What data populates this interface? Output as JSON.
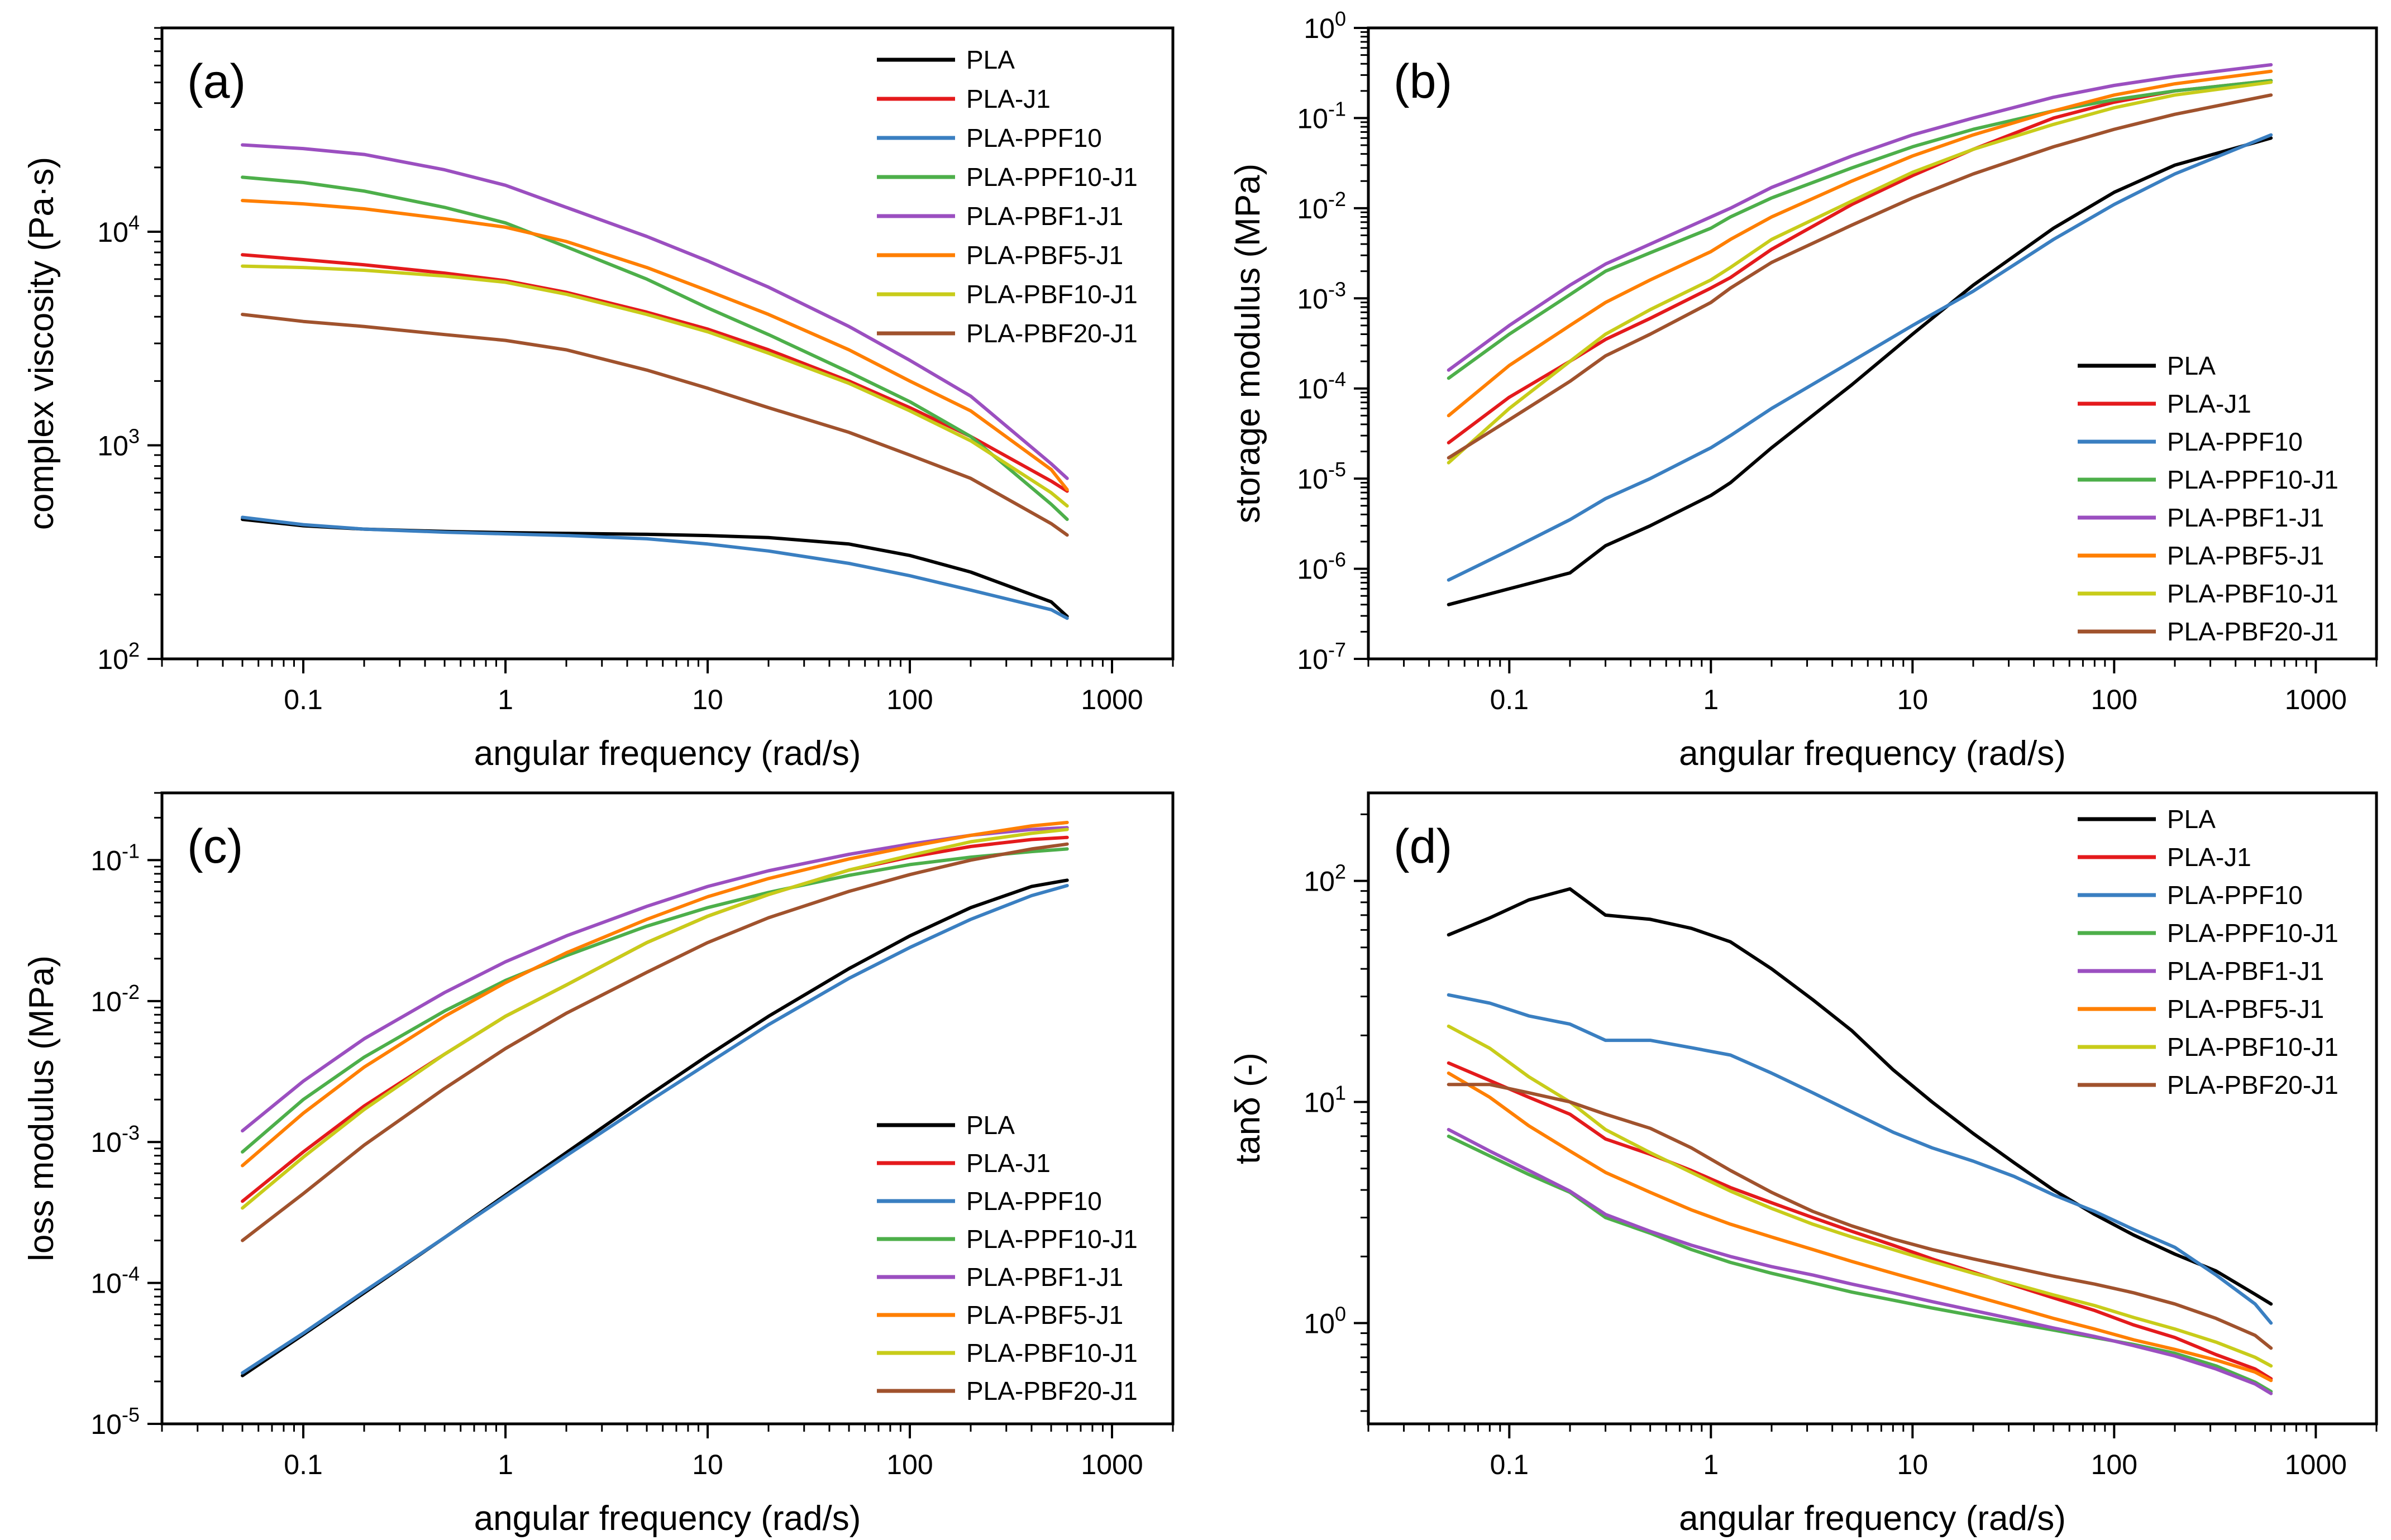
{
  "colors": {
    "PLA": "#000000",
    "PLA-J1": "#e41a1c",
    "PLA-PPF10": "#3a7fc1",
    "PLA-PPF10-J1": "#4daf4a",
    "PLA-PBF1-J1": "#9b4fc0",
    "PLA-PBF5-J1": "#ff7f00",
    "PLA-PBF10-J1": "#c8cc1a",
    "PLA-PBF20-J1": "#a0522d"
  },
  "chart_data": [
    {
      "type": "line",
      "label": "(a)",
      "xlabel": "angular frequency (rad/s)",
      "ylabel": "complex viscosity (Pa·s)",
      "xscale": "log",
      "yscale": "log",
      "xlim": [
        0.02,
        2000
      ],
      "ylim": [
        100,
        90000
      ],
      "xticks": [
        {
          "v": 0.1,
          "t": "0.1"
        },
        {
          "v": 1,
          "t": "1"
        },
        {
          "v": 10,
          "t": "10"
        },
        {
          "v": 100,
          "t": "100"
        },
        {
          "v": 1000,
          "t": "1000"
        }
      ],
      "yticks": [
        {
          "v": 100,
          "b": "10",
          "e": "2"
        },
        {
          "v": 1000,
          "b": "10",
          "e": "3"
        },
        {
          "v": 10000,
          "b": "10",
          "e": "4"
        }
      ],
      "legend": "top-right",
      "x": [
        0.05,
        0.1,
        0.2,
        0.5,
        1,
        2,
        5,
        10,
        20,
        50,
        100,
        200,
        500,
        600
      ],
      "series": [
        {
          "name": "PLA",
          "values": [
            450,
            420,
            405,
            395,
            390,
            387,
            383,
            378,
            370,
            345,
            305,
            255,
            185,
            158
          ]
        },
        {
          "name": "PLA-J1",
          "values": [
            7800,
            7400,
            7000,
            6400,
            5900,
            5200,
            4200,
            3500,
            2800,
            2000,
            1500,
            1100,
            680,
            610
          ]
        },
        {
          "name": "PLA-PPF10",
          "values": [
            460,
            425,
            405,
            392,
            385,
            378,
            365,
            345,
            320,
            280,
            245,
            210,
            170,
            155
          ]
        },
        {
          "name": "PLA-PPF10-J1",
          "values": [
            18000,
            17000,
            15500,
            13000,
            11000,
            8500,
            6000,
            4400,
            3300,
            2200,
            1600,
            1100,
            530,
            450
          ]
        },
        {
          "name": "PLA-PBF1-J1",
          "values": [
            25500,
            24500,
            23000,
            19500,
            16500,
            13000,
            9500,
            7300,
            5500,
            3600,
            2500,
            1700,
            820,
            700
          ]
        },
        {
          "name": "PLA-PBF5-J1",
          "values": [
            14000,
            13500,
            12800,
            11500,
            10500,
            9000,
            6800,
            5300,
            4100,
            2800,
            2000,
            1450,
            770,
            620
          ]
        },
        {
          "name": "PLA-PBF10-J1",
          "values": [
            6900,
            6800,
            6600,
            6200,
            5800,
            5100,
            4100,
            3400,
            2700,
            1950,
            1450,
            1050,
            600,
            520
          ]
        },
        {
          "name": "PLA-PBF20-J1",
          "values": [
            4100,
            3800,
            3600,
            3300,
            3100,
            2800,
            2250,
            1850,
            1500,
            1150,
            900,
            700,
            430,
            380
          ]
        }
      ]
    },
    {
      "type": "line",
      "label": "(b)",
      "xlabel": "angular frequency (rad/s)",
      "ylabel": "storage modulus (MPa)",
      "xscale": "log",
      "yscale": "log",
      "xlim": [
        0.02,
        2000
      ],
      "ylim": [
        1e-07,
        1
      ],
      "xticks": [
        {
          "v": 0.1,
          "t": "0.1"
        },
        {
          "v": 1,
          "t": "1"
        },
        {
          "v": 10,
          "t": "10"
        },
        {
          "v": 100,
          "t": "100"
        },
        {
          "v": 1000,
          "t": "1000"
        }
      ],
      "yticks": [
        {
          "v": 1e-07,
          "b": "10",
          "e": "-7"
        },
        {
          "v": 1e-06,
          "b": "10",
          "e": "-6"
        },
        {
          "v": 1e-05,
          "b": "10",
          "e": "-5"
        },
        {
          "v": 0.0001,
          "b": "10",
          "e": "-4"
        },
        {
          "v": 0.001,
          "b": "10",
          "e": "-3"
        },
        {
          "v": 0.01,
          "b": "10",
          "e": "-2"
        },
        {
          "v": 0.1,
          "b": "10",
          "e": "-1"
        },
        {
          "v": 1,
          "b": "10",
          "e": "0"
        }
      ],
      "legend": "bottom-right",
      "x": [
        0.05,
        0.1,
        0.2,
        0.3,
        0.5,
        1,
        1.25,
        2,
        5,
        10,
        20,
        50,
        100,
        200,
        600
      ],
      "series": [
        {
          "name": "PLA",
          "values": [
            4e-07,
            6e-07,
            9e-07,
            1.8e-06,
            3e-06,
            6.5e-06,
            9e-06,
            2.2e-05,
            0.00011,
            0.0004,
            0.0014,
            0.006,
            0.015,
            0.03,
            0.06
          ]
        },
        {
          "name": "PLA-J1",
          "values": [
            2.5e-05,
            8e-05,
            0.0002,
            0.00035,
            0.0006,
            0.0013,
            0.0017,
            0.0035,
            0.011,
            0.023,
            0.045,
            0.1,
            0.15,
            0.2,
            0.26
          ]
        },
        {
          "name": "PLA-PPF10",
          "values": [
            7.5e-07,
            1.6e-06,
            3.5e-06,
            6e-06,
            1e-05,
            2.2e-05,
            3e-05,
            6e-05,
            0.0002,
            0.0005,
            0.0012,
            0.0045,
            0.011,
            0.024,
            0.065
          ]
        },
        {
          "name": "PLA-PPF10-J1",
          "values": [
            0.00013,
            0.0004,
            0.0011,
            0.002,
            0.0032,
            0.006,
            0.008,
            0.013,
            0.028,
            0.048,
            0.075,
            0.12,
            0.16,
            0.2,
            0.26
          ]
        },
        {
          "name": "PLA-PBF1-J1",
          "values": [
            0.00016,
            0.0005,
            0.0014,
            0.0024,
            0.004,
            0.008,
            0.01,
            0.017,
            0.038,
            0.065,
            0.1,
            0.17,
            0.23,
            0.29,
            0.39
          ]
        },
        {
          "name": "PLA-PBF5-J1",
          "values": [
            5e-05,
            0.00018,
            0.0005,
            0.0009,
            0.0016,
            0.0033,
            0.0045,
            0.008,
            0.02,
            0.038,
            0.065,
            0.12,
            0.18,
            0.24,
            0.33
          ]
        },
        {
          "name": "PLA-PBF10-J1",
          "values": [
            1.5e-05,
            6e-05,
            0.0002,
            0.0004,
            0.00075,
            0.0016,
            0.0022,
            0.0045,
            0.012,
            0.025,
            0.045,
            0.085,
            0.13,
            0.18,
            0.25
          ]
        },
        {
          "name": "PLA-PBF20-J1",
          "values": [
            1.7e-05,
            4.5e-05,
            0.00012,
            0.00023,
            0.0004,
            0.0009,
            0.0013,
            0.0025,
            0.0065,
            0.013,
            0.024,
            0.048,
            0.075,
            0.11,
            0.18
          ]
        }
      ]
    },
    {
      "type": "line",
      "label": "(c)",
      "xlabel": "angular frequency (rad/s)",
      "ylabel": "loss modulus (MPa)",
      "xscale": "log",
      "yscale": "log",
      "xlim": [
        0.02,
        2000
      ],
      "ylim": [
        1e-05,
        0.3
      ],
      "xticks": [
        {
          "v": 0.1,
          "t": "0.1"
        },
        {
          "v": 1,
          "t": "1"
        },
        {
          "v": 10,
          "t": "10"
        },
        {
          "v": 100,
          "t": "100"
        },
        {
          "v": 1000,
          "t": "1000"
        }
      ],
      "yticks": [
        {
          "v": 1e-05,
          "b": "10",
          "e": "-5"
        },
        {
          "v": 0.0001,
          "b": "10",
          "e": "-4"
        },
        {
          "v": 0.001,
          "b": "10",
          "e": "-3"
        },
        {
          "v": 0.01,
          "b": "10",
          "e": "-2"
        },
        {
          "v": 0.1,
          "b": "10",
          "e": "-1"
        }
      ],
      "legend": "bottom-right",
      "x": [
        0.05,
        0.1,
        0.2,
        0.5,
        1,
        2,
        5,
        10,
        20,
        50,
        100,
        200,
        400,
        600
      ],
      "series": [
        {
          "name": "PLA",
          "values": [
            2.2e-05,
            4.3e-05,
            8.5e-05,
            0.00021,
            0.00042,
            0.00084,
            0.0021,
            0.0041,
            0.0078,
            0.017,
            0.029,
            0.046,
            0.065,
            0.072
          ]
        },
        {
          "name": "PLA-J1",
          "values": [
            0.00038,
            0.00085,
            0.0018,
            0.0042,
            0.0078,
            0.013,
            0.026,
            0.04,
            0.057,
            0.085,
            0.105,
            0.125,
            0.14,
            0.145
          ]
        },
        {
          "name": "PLA-PPF10",
          "values": [
            2.3e-05,
            4.4e-05,
            8.7e-05,
            0.00021,
            0.00041,
            0.0008,
            0.0019,
            0.0036,
            0.0068,
            0.0145,
            0.024,
            0.038,
            0.056,
            0.066
          ]
        },
        {
          "name": "PLA-PPF10-J1",
          "values": [
            0.00085,
            0.002,
            0.004,
            0.0085,
            0.014,
            0.021,
            0.034,
            0.046,
            0.059,
            0.078,
            0.093,
            0.105,
            0.115,
            0.12
          ]
        },
        {
          "name": "PLA-PBF1-J1",
          "values": [
            0.0012,
            0.0027,
            0.0054,
            0.0115,
            0.019,
            0.029,
            0.047,
            0.065,
            0.084,
            0.11,
            0.13,
            0.15,
            0.165,
            0.17
          ]
        },
        {
          "name": "PLA-PBF5-J1",
          "values": [
            0.00068,
            0.0016,
            0.0034,
            0.0078,
            0.0135,
            0.022,
            0.038,
            0.055,
            0.074,
            0.102,
            0.125,
            0.15,
            0.175,
            0.185
          ]
        },
        {
          "name": "PLA-PBF10-J1",
          "values": [
            0.00034,
            0.00078,
            0.0017,
            0.0042,
            0.0078,
            0.013,
            0.026,
            0.04,
            0.057,
            0.085,
            0.108,
            0.135,
            0.155,
            0.165
          ]
        },
        {
          "name": "PLA-PBF20-J1",
          "values": [
            0.0002,
            0.00043,
            0.00095,
            0.0024,
            0.0046,
            0.0082,
            0.016,
            0.026,
            0.039,
            0.06,
            0.079,
            0.1,
            0.12,
            0.13
          ]
        }
      ]
    },
    {
      "type": "line",
      "label": "(d)",
      "xlabel": "angular frequency (rad/s)",
      "ylabel": "tanδ (-)",
      "xscale": "log",
      "yscale": "log",
      "xlim": [
        0.02,
        2000
      ],
      "ylim": [
        0.35,
        250
      ],
      "xticks": [
        {
          "v": 0.1,
          "t": "0.1"
        },
        {
          "v": 1,
          "t": "1"
        },
        {
          "v": 10,
          "t": "10"
        },
        {
          "v": 100,
          "t": "100"
        },
        {
          "v": 1000,
          "t": "1000"
        }
      ],
      "yticks": [
        {
          "v": 1,
          "b": "10",
          "e": "0"
        },
        {
          "v": 10,
          "b": "10",
          "e": "1"
        },
        {
          "v": 100,
          "b": "10",
          "e": "2"
        }
      ],
      "legend": "top-right",
      "x": [
        0.05,
        0.08,
        0.125,
        0.2,
        0.3,
        0.5,
        0.8,
        1.25,
        2,
        3.2,
        5,
        8,
        12.5,
        20,
        32,
        50,
        80,
        125,
        200,
        320,
        500,
        600
      ],
      "series": [
        {
          "name": "PLA",
          "values": [
            57,
            68,
            82,
            92,
            70,
            67,
            61,
            53,
            40,
            29,
            21,
            14,
            10,
            7.2,
            5.3,
            4.0,
            3.1,
            2.5,
            2.05,
            1.72,
            1.35,
            1.22
          ]
        },
        {
          "name": "PLA-J1",
          "values": [
            15,
            12.5,
            10.5,
            8.8,
            6.8,
            5.8,
            4.9,
            4.1,
            3.5,
            3.0,
            2.6,
            2.25,
            1.95,
            1.7,
            1.48,
            1.3,
            1.14,
            0.98,
            0.86,
            0.72,
            0.62,
            0.56
          ]
        },
        {
          "name": "PLA-PPF10",
          "values": [
            30.5,
            28,
            24.5,
            22.5,
            19,
            19,
            17.6,
            16.3,
            13.5,
            11,
            9,
            7.3,
            6.2,
            5.4,
            4.6,
            3.8,
            3.2,
            2.65,
            2.2,
            1.65,
            1.22,
            1.0
          ]
        },
        {
          "name": "PLA-PPF10-J1",
          "values": [
            7,
            5.7,
            4.7,
            3.9,
            3.0,
            2.55,
            2.15,
            1.88,
            1.68,
            1.52,
            1.38,
            1.27,
            1.17,
            1.08,
            1.0,
            0.93,
            0.86,
            0.8,
            0.73,
            0.64,
            0.54,
            0.49
          ]
        },
        {
          "name": "PLA-PBF1-J1",
          "values": [
            7.5,
            6.0,
            4.9,
            3.95,
            3.1,
            2.6,
            2.25,
            2.0,
            1.8,
            1.65,
            1.5,
            1.37,
            1.25,
            1.14,
            1.04,
            0.95,
            0.87,
            0.79,
            0.71,
            0.62,
            0.53,
            0.48
          ]
        },
        {
          "name": "PLA-PBF5-J1",
          "values": [
            13.5,
            10.5,
            7.8,
            6.0,
            4.8,
            3.9,
            3.25,
            2.8,
            2.45,
            2.15,
            1.9,
            1.68,
            1.5,
            1.33,
            1.18,
            1.05,
            0.94,
            0.84,
            0.76,
            0.68,
            0.6,
            0.55
          ]
        },
        {
          "name": "PLA-PBF10-J1",
          "values": [
            22,
            17.5,
            13,
            10,
            7.5,
            5.9,
            4.8,
            3.95,
            3.3,
            2.8,
            2.45,
            2.15,
            1.9,
            1.68,
            1.5,
            1.34,
            1.2,
            1.06,
            0.94,
            0.82,
            0.7,
            0.64
          ]
        },
        {
          "name": "PLA-PBF20-J1",
          "values": [
            12,
            12,
            11,
            10,
            8.8,
            7.6,
            6.2,
            4.9,
            3.9,
            3.2,
            2.75,
            2.4,
            2.15,
            1.95,
            1.78,
            1.63,
            1.5,
            1.37,
            1.22,
            1.05,
            0.88,
            0.77
          ]
        }
      ]
    }
  ]
}
